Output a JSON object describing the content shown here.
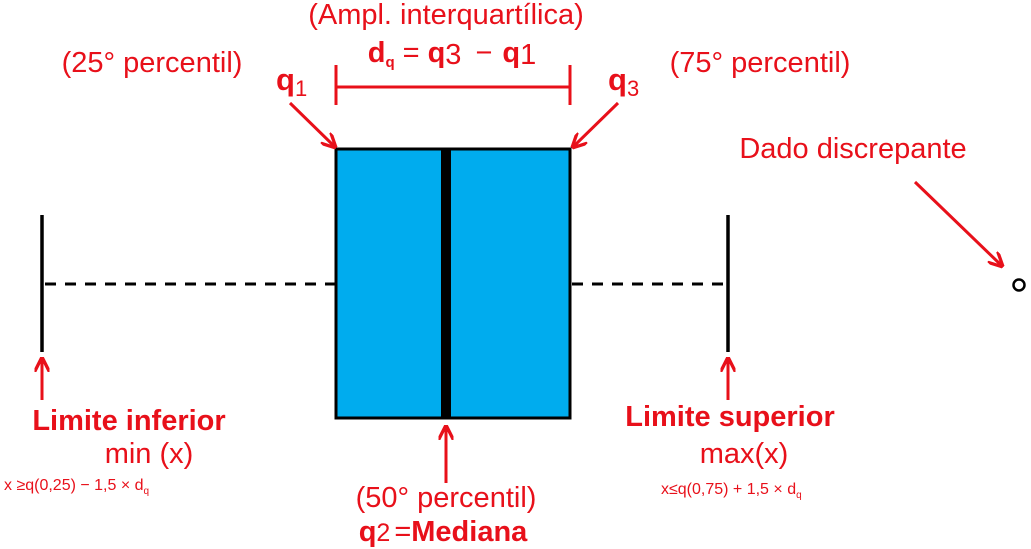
{
  "colors": {
    "annotation": "#e8101a",
    "box_fill": "#00acee",
    "line": "#000000"
  },
  "top": {
    "iqr_title": "(Ampl. interquartílica)",
    "iqr_formula": {
      "d": "d",
      "d_sub": "q",
      "eq": "=",
      "q3": "q",
      "q3_sub": "3",
      "minus": "−",
      "q1": "q",
      "q1_sub": "1"
    }
  },
  "q1": {
    "percentile": "(25° percentil)",
    "symbol": "q",
    "sub": "1"
  },
  "q3": {
    "percentile": "(75° percentil)",
    "symbol": "q",
    "sub": "3"
  },
  "outlier": {
    "label": "Dado discrepante"
  },
  "median": {
    "percentile": "(50° percentil)",
    "symbol": "q",
    "sub": "2",
    "eq": "=",
    "name": "Mediana"
  },
  "lower_limit": {
    "title": "Limite inferior",
    "func": "min (x)",
    "formula": "x ≥q(0,25) − 1,5 × d",
    "formula_sub": "q"
  },
  "upper_limit": {
    "title": "Limite superior",
    "func": "max(x)",
    "formula": "x≤q(0,75) + 1,5 × d",
    "formula_sub": "q"
  }
}
